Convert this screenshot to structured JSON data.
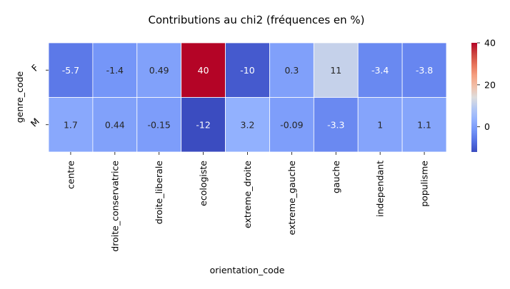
{
  "chart_data": {
    "type": "heatmap",
    "title": "Contributions au chi2 (fréquences en %)",
    "xlabel": "orientation_code",
    "ylabel": "genre_code",
    "x_categories": [
      "centre",
      "droite_conservatrice",
      "droite_liberale",
      "ecologiste",
      "extreme_droite",
      "extreme_gauche",
      "gauche",
      "independant",
      "populisme"
    ],
    "y_categories": [
      "F",
      "M"
    ],
    "values": [
      [
        -5.7,
        -1.4,
        0.49,
        40,
        -10,
        0.3,
        11,
        -3.4,
        -3.8
      ],
      [
        1.7,
        0.44,
        -0.15,
        -12,
        3.2,
        -0.09,
        -3.3,
        1,
        1.1
      ]
    ],
    "cell_labels": [
      [
        "-5.7",
        "-1.4",
        "0.49",
        "40",
        "-10",
        "0.3",
        "11",
        "-3.4",
        "-3.8"
      ],
      [
        "1.7",
        "0.44",
        "-0.15",
        "-12",
        "3.2",
        "-0.09",
        "-3.3",
        "1",
        "1.1"
      ]
    ],
    "colormap": "coolwarm",
    "colorbar": {
      "range": [
        -12,
        40
      ],
      "ticks": [
        0,
        20,
        40
      ],
      "tick_labels": [
        "0",
        "20",
        "40"
      ]
    }
  }
}
